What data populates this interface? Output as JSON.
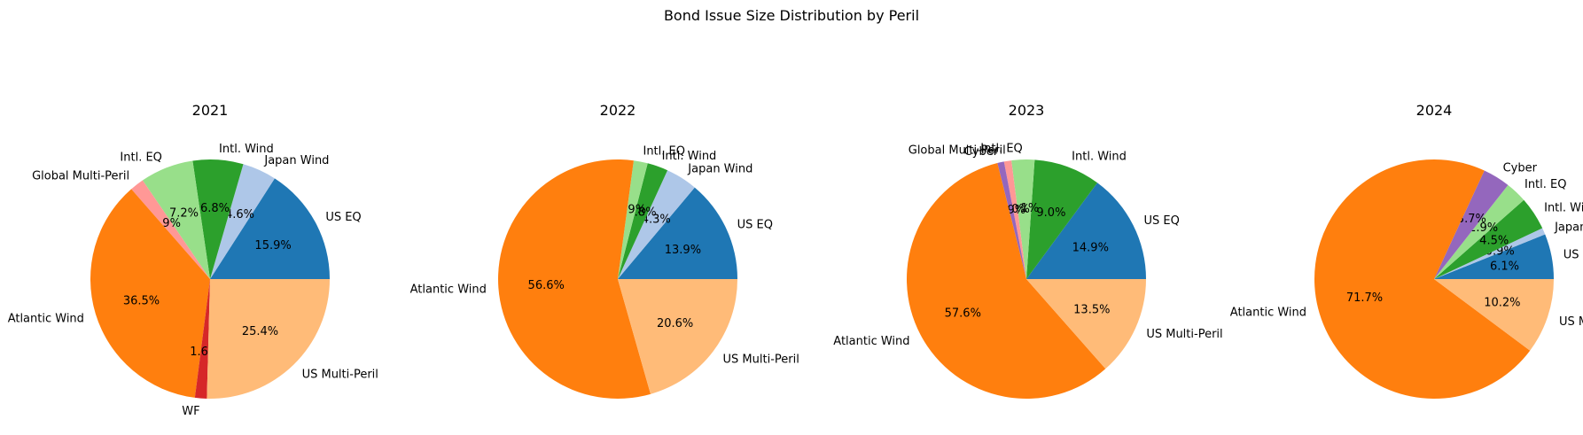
{
  "figure_title": "Bond Issue Size Distribution by Peril",
  "colors": {
    "US EQ": "#1f77b4",
    "Japan Wind": "#aec7e8",
    "Intl. Wind": "#2ca02c",
    "Intl. EQ": "#98df8a",
    "Global Multi-Peril": "#ff9896",
    "Atlantic Wind": "#ff7f0e",
    "WF": "#d62728",
    "US Multi-Peril": "#ffbb78",
    "Cyber": "#9467bd"
  },
  "chart_data": [
    {
      "type": "pie",
      "title": "2021",
      "slices": [
        {
          "label": "US EQ",
          "value": 15.9,
          "pct_label": "15.9%"
        },
        {
          "label": "Japan Wind",
          "value": 4.6,
          "pct_label": "4.6%"
        },
        {
          "label": "Intl. Wind",
          "value": 6.8,
          "pct_label": "6.8%"
        },
        {
          "label": "Intl. EQ",
          "value": 7.2,
          "pct_label": "7.2%"
        },
        {
          "label": "Global Multi-Peril",
          "value": 1.9,
          "pct_label": "1.9%"
        },
        {
          "label": "Atlantic Wind",
          "value": 36.5,
          "pct_label": "36.5%"
        },
        {
          "label": "WF",
          "value": 1.6,
          "pct_label": "1.6%"
        },
        {
          "label": "US Multi-Peril",
          "value": 25.4,
          "pct_label": "25.4%"
        }
      ]
    },
    {
      "type": "pie",
      "title": "2022",
      "slices": [
        {
          "label": "US EQ",
          "value": 13.9,
          "pct_label": "13.9%"
        },
        {
          "label": "Japan Wind",
          "value": 4.3,
          "pct_label": "4.3%"
        },
        {
          "label": "Intl. Wind",
          "value": 2.8,
          "pct_label": "2.8%"
        },
        {
          "label": "Intl. EQ",
          "value": 1.9,
          "pct_label": "1.9%"
        },
        {
          "label": "Atlantic Wind",
          "value": 56.6,
          "pct_label": "56.6%"
        },
        {
          "label": "US Multi-Peril",
          "value": 20.6,
          "pct_label": "20.6%"
        }
      ]
    },
    {
      "type": "pie",
      "title": "2023",
      "slices": [
        {
          "label": "US EQ",
          "value": 14.9,
          "pct_label": "14.9%"
        },
        {
          "label": "Intl. Wind",
          "value": 9.0,
          "pct_label": "9.0%"
        },
        {
          "label": "Intl. EQ",
          "value": 3.1,
          "pct_label": "3.1%"
        },
        {
          "label": "Global Multi-Peril",
          "value": 1.0,
          "pct_label": "1.0%"
        },
        {
          "label": "Cyber",
          "value": 0.9,
          "pct_label": "0.9%"
        },
        {
          "label": "Atlantic Wind",
          "value": 57.6,
          "pct_label": "57.6%"
        },
        {
          "label": "US Multi-Peril",
          "value": 13.5,
          "pct_label": "13.5%"
        }
      ]
    },
    {
      "type": "pie",
      "title": "2024",
      "slices": [
        {
          "label": "US EQ",
          "value": 6.1,
          "pct_label": "6.1%"
        },
        {
          "label": "Japan Wind",
          "value": 0.9,
          "pct_label": "0.9%"
        },
        {
          "label": "Intl. Wind",
          "value": 4.5,
          "pct_label": "4.5%"
        },
        {
          "label": "Intl. EQ",
          "value": 2.9,
          "pct_label": "2.9%"
        },
        {
          "label": "Cyber",
          "value": 3.7,
          "pct_label": "3.7%"
        },
        {
          "label": "Atlantic Wind",
          "value": 71.7,
          "pct_label": "71.7%"
        },
        {
          "label": "US Multi-Peril",
          "value": 10.2,
          "pct_label": "10.2%"
        }
      ]
    }
  ]
}
